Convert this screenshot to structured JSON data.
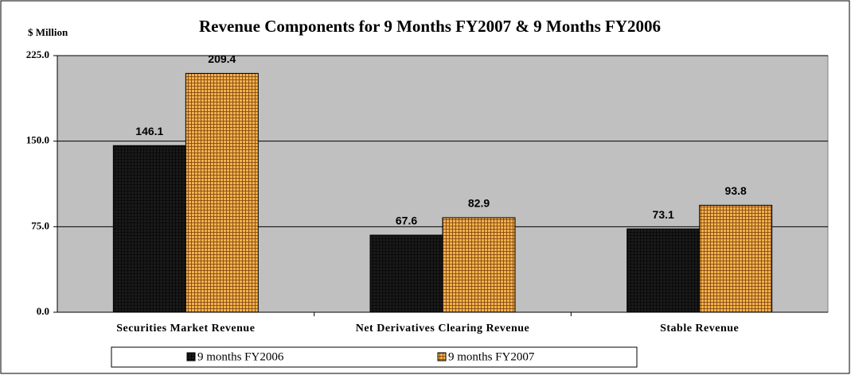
{
  "chart_data": {
    "type": "bar",
    "title": "Revenue Components for 9 Months FY2007 & 9 Months FY2006",
    "y_label": "$ Million",
    "categories": [
      "Securities Market Revenue",
      "Net Derivatives Clearing Revenue",
      "Stable Revenue"
    ],
    "series": [
      {
        "name": "9 months FY2006",
        "color": "#1a1a1a",
        "values": [
          146.1,
          67.6,
          73.1
        ]
      },
      {
        "name": "9 months FY2007",
        "color": "#f2b24a",
        "values": [
          209.4,
          82.9,
          93.8
        ]
      }
    ],
    "ylim": [
      0,
      225
    ],
    "yticks": [
      {
        "value": 0,
        "label": "0.0"
      },
      {
        "value": 75,
        "label": "75.0"
      },
      {
        "value": 150,
        "label": "150.0"
      },
      {
        "value": 225,
        "label": "225.0"
      }
    ],
    "grid": true,
    "legend": "bottom"
  }
}
